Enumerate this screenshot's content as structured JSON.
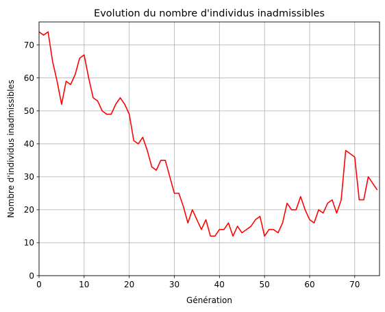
{
  "chart_data": {
    "type": "line",
    "title": "Evolution du nombre d'individus inadmissibles",
    "xlabel": "Génération",
    "ylabel": "Nombre d'individus inadmissibles",
    "xlim": [
      0,
      75.5
    ],
    "ylim": [
      0,
      77
    ],
    "x_ticks": [
      0,
      10,
      20,
      30,
      40,
      50,
      60,
      70
    ],
    "y_ticks": [
      0,
      10,
      20,
      30,
      40,
      50,
      60,
      70
    ],
    "grid": true,
    "series": [
      {
        "color": "#ff0000",
        "x": [
          0,
          1,
          2,
          3,
          4,
          5,
          6,
          7,
          8,
          9,
          10,
          11,
          12,
          13,
          14,
          15,
          16,
          17,
          18,
          19,
          20,
          21,
          22,
          23,
          24,
          25,
          26,
          27,
          28,
          29,
          30,
          31,
          32,
          33,
          34,
          35,
          36,
          37,
          38,
          39,
          40,
          41,
          42,
          43,
          44,
          45,
          46,
          47,
          48,
          49,
          50,
          51,
          52,
          53,
          54,
          55,
          56,
          57,
          58,
          59,
          60,
          61,
          62,
          63,
          64,
          65,
          66,
          67,
          68,
          69,
          70,
          71,
          72,
          73,
          74,
          75
        ],
        "values": [
          74,
          73,
          74,
          65,
          59,
          52,
          59,
          58,
          61,
          66,
          67,
          60,
          54,
          53,
          50,
          49,
          49,
          52,
          54,
          52,
          49,
          41,
          40,
          42,
          38,
          33,
          32,
          35,
          35,
          30,
          25,
          25,
          21,
          16,
          20,
          17,
          14,
          17,
          12,
          12,
          14,
          14,
          16,
          12,
          15,
          13,
          14,
          15,
          17,
          18,
          12,
          14,
          14,
          13,
          16,
          22,
          20,
          20,
          24,
          20,
          17,
          16,
          20,
          19,
          22,
          23,
          19,
          23,
          38,
          37,
          36,
          23,
          23,
          30,
          28,
          26
        ]
      }
    ]
  }
}
